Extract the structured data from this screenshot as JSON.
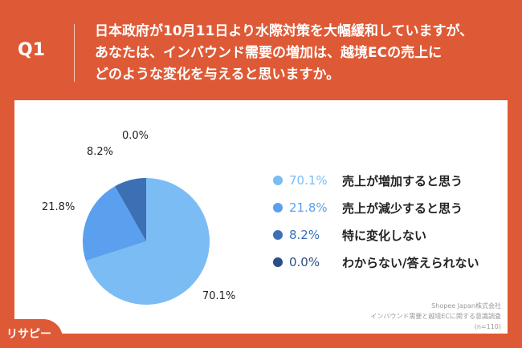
{
  "header": {
    "q_label": "Q1",
    "question_lines": [
      "日本政府が10月11日より水際対策を大幅緩和していますが、",
      "あなたは、インバウンド需要の増加は、越境ECの売上に",
      "どのような変化を与えると思いますか。"
    ]
  },
  "chart_data": {
    "type": "pie",
    "title": "",
    "categories": [
      "売上が増加すると思う",
      "売上が減少すると思う",
      "特に変化しない",
      "わからない/答えられない"
    ],
    "values": [
      70.1,
      21.8,
      8.2,
      0.0
    ],
    "labels": [
      "70.1%",
      "21.8%",
      "8.2%",
      "0.0%"
    ],
    "colors": [
      "#7bbcf5",
      "#5aa0ee",
      "#3b70b4",
      "#284f86"
    ],
    "legend_placement": "right",
    "start": "top",
    "direction": "clockwise"
  },
  "source": {
    "company": "Shopee Japan株式会社",
    "survey": "インバウンド需要と越境ECに関する意識調査",
    "n": "(n=110)"
  },
  "logo": {
    "text": "リサピー"
  }
}
